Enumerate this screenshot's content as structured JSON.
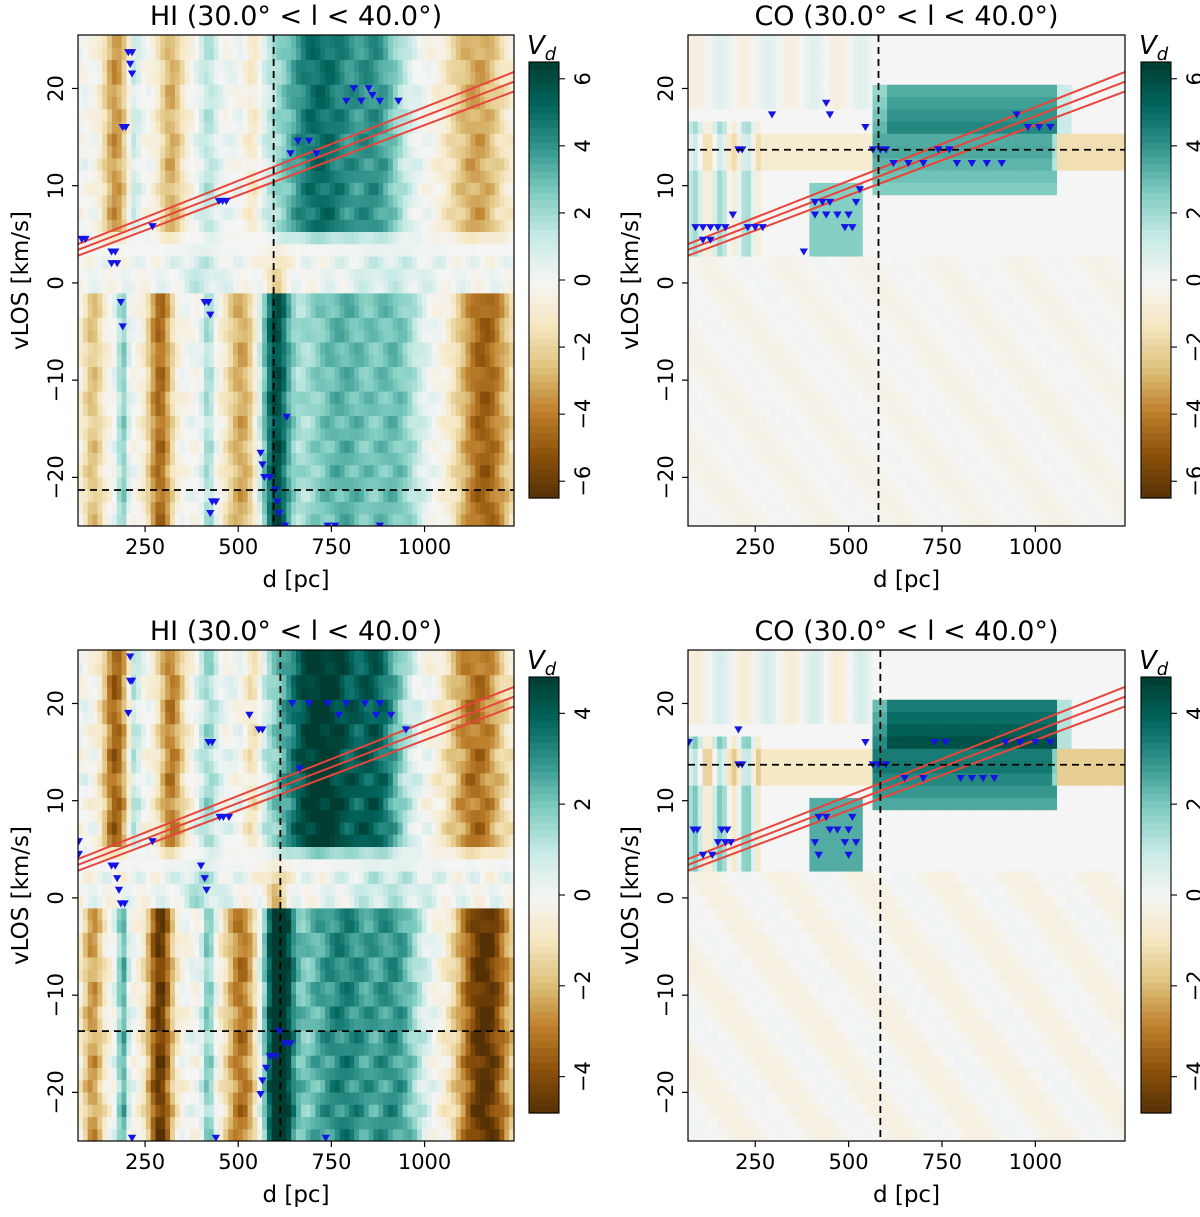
{
  "figure": {
    "colormap": {
      "name": "BrBG",
      "stops": [
        "#543005",
        "#8c510a",
        "#bf812d",
        "#dfc27d",
        "#f6e8c3",
        "#f5f5f5",
        "#c7eae5",
        "#80cdc1",
        "#35978f",
        "#01665e",
        "#003c30"
      ]
    },
    "line_colors": {
      "trend": "#e8453c",
      "marker": "#1414e6",
      "crosshair": "#000000"
    }
  },
  "chart_data": [
    {
      "type": "heatmap",
      "panel": "top-left",
      "title": "HI (30.0° < l < 40.0°)",
      "xlabel": "d [pc]",
      "ylabel": "vLOS [km/s]",
      "xlim": [
        70,
        1240
      ],
      "ylim": [
        -25,
        25.5
      ],
      "x_ticks": [
        250,
        500,
        750,
        1000
      ],
      "x_tick_labels": [
        "250",
        "500",
        "750",
        "1000"
      ],
      "y_ticks": [
        -20,
        -10,
        0,
        10,
        20
      ],
      "y_tick_labels": [
        "−20",
        "−10",
        "0",
        "10",
        "20"
      ],
      "colorbar": {
        "label": "V",
        "label_sub": "d",
        "range": [
          -6.5,
          6.5
        ],
        "ticks": [
          -6,
          -4,
          -2,
          0,
          2,
          4,
          6
        ],
        "tick_labels": [
          "−6",
          "−4",
          "−2",
          "0",
          "2",
          "4",
          "6"
        ]
      },
      "crosshair": {
        "x": 595,
        "y": -21.3
      },
      "trend_lines": [
        {
          "x0": 70,
          "y0": 2.8,
          "x1": 1240,
          "y1": 19.7
        },
        {
          "x0": 70,
          "y0": 3.4,
          "x1": 1240,
          "y1": 20.7
        },
        {
          "x0": 70,
          "y0": 4.0,
          "x1": 1240,
          "y1": 21.7
        }
      ],
      "markers": [
        {
          "x": 80,
          "y": 4.5
        },
        {
          "x": 90,
          "y": 4.5
        },
        {
          "x": 205,
          "y": 23.7
        },
        {
          "x": 215,
          "y": 23.7
        },
        {
          "x": 210,
          "y": 22.5
        },
        {
          "x": 215,
          "y": 21.5
        },
        {
          "x": 190,
          "y": 16.0
        },
        {
          "x": 198,
          "y": 16.0
        },
        {
          "x": 160,
          "y": 3.2
        },
        {
          "x": 170,
          "y": 3.2
        },
        {
          "x": 160,
          "y": 2.0
        },
        {
          "x": 175,
          "y": 2.0
        },
        {
          "x": 185,
          "y": -2.0
        },
        {
          "x": 190,
          "y": -4.5
        },
        {
          "x": 270,
          "y": 5.8
        },
        {
          "x": 448,
          "y": 8.4
        },
        {
          "x": 458,
          "y": 8.4
        },
        {
          "x": 468,
          "y": 8.4
        },
        {
          "x": 410,
          "y": -2.0
        },
        {
          "x": 420,
          "y": -2.0
        },
        {
          "x": 425,
          "y": -3.3
        },
        {
          "x": 560,
          "y": -17.5
        },
        {
          "x": 565,
          "y": -18.7
        },
        {
          "x": 570,
          "y": -20.0
        },
        {
          "x": 585,
          "y": -20.0
        },
        {
          "x": 600,
          "y": -21.3
        },
        {
          "x": 605,
          "y": -22.5
        },
        {
          "x": 610,
          "y": -23.7
        },
        {
          "x": 625,
          "y": -25.0
        },
        {
          "x": 430,
          "y": -22.5
        },
        {
          "x": 440,
          "y": -22.5
        },
        {
          "x": 425,
          "y": -23.7
        },
        {
          "x": 630,
          "y": -13.8
        },
        {
          "x": 740,
          "y": -25.0
        },
        {
          "x": 760,
          "y": -25.0
        },
        {
          "x": 880,
          "y": -25.0
        },
        {
          "x": 640,
          "y": 13.3
        },
        {
          "x": 660,
          "y": 14.6
        },
        {
          "x": 690,
          "y": 14.6
        },
        {
          "x": 710,
          "y": 13.3
        },
        {
          "x": 790,
          "y": 18.7
        },
        {
          "x": 830,
          "y": 18.7
        },
        {
          "x": 880,
          "y": 18.7
        },
        {
          "x": 930,
          "y": 18.7
        },
        {
          "x": 810,
          "y": 20.0
        },
        {
          "x": 850,
          "y": 20.0
        },
        {
          "x": 860,
          "y": 19.3
        }
      ]
    },
    {
      "type": "heatmap",
      "panel": "top-right",
      "title": "CO (30.0° < l < 40.0°)",
      "xlabel": "d [pc]",
      "ylabel": "vLOS [km/s]",
      "xlim": [
        70,
        1240
      ],
      "ylim": [
        -25,
        25.5
      ],
      "x_ticks": [
        250,
        500,
        750,
        1000
      ],
      "x_tick_labels": [
        "250",
        "500",
        "750",
        "1000"
      ],
      "y_ticks": [
        -20,
        -10,
        0,
        10,
        20
      ],
      "y_tick_labels": [
        "−20",
        "−10",
        "0",
        "10",
        "20"
      ],
      "colorbar": {
        "label": "V",
        "label_sub": "d",
        "range": [
          -6.5,
          6.5
        ],
        "ticks": [
          -6,
          -4,
          -2,
          0,
          2,
          4,
          6
        ],
        "tick_labels": [
          "−6",
          "−4",
          "−2",
          "0",
          "2",
          "4",
          "6"
        ]
      },
      "crosshair": {
        "x": 580,
        "y": 13.7
      },
      "trend_lines": [
        {
          "x0": 70,
          "y0": 2.8,
          "x1": 1240,
          "y1": 19.7
        },
        {
          "x0": 70,
          "y0": 3.4,
          "x1": 1240,
          "y1": 20.7
        },
        {
          "x0": 70,
          "y0": 4.0,
          "x1": 1240,
          "y1": 21.7
        }
      ],
      "markers": [
        {
          "x": 90,
          "y": 5.7
        },
        {
          "x": 110,
          "y": 5.7
        },
        {
          "x": 130,
          "y": 5.7
        },
        {
          "x": 150,
          "y": 5.7
        },
        {
          "x": 170,
          "y": 5.7
        },
        {
          "x": 110,
          "y": 4.4
        },
        {
          "x": 130,
          "y": 4.4
        },
        {
          "x": 190,
          "y": 7.0
        },
        {
          "x": 205,
          "y": 13.7
        },
        {
          "x": 215,
          "y": 13.7
        },
        {
          "x": 230,
          "y": 5.7
        },
        {
          "x": 250,
          "y": 5.7
        },
        {
          "x": 270,
          "y": 5.7
        },
        {
          "x": 295,
          "y": 17.3
        },
        {
          "x": 380,
          "y": 3.2
        },
        {
          "x": 410,
          "y": 8.3
        },
        {
          "x": 430,
          "y": 8.3
        },
        {
          "x": 450,
          "y": 8.3
        },
        {
          "x": 410,
          "y": 7.0
        },
        {
          "x": 440,
          "y": 7.0
        },
        {
          "x": 470,
          "y": 7.0
        },
        {
          "x": 500,
          "y": 7.0
        },
        {
          "x": 440,
          "y": 18.5
        },
        {
          "x": 450,
          "y": 17.3
        },
        {
          "x": 520,
          "y": 8.3
        },
        {
          "x": 530,
          "y": 9.6
        },
        {
          "x": 490,
          "y": 5.7
        },
        {
          "x": 510,
          "y": 5.7
        },
        {
          "x": 545,
          "y": 16.0
        },
        {
          "x": 565,
          "y": 13.7
        },
        {
          "x": 585,
          "y": 13.7
        },
        {
          "x": 600,
          "y": 13.7
        },
        {
          "x": 620,
          "y": 12.3
        },
        {
          "x": 660,
          "y": 12.3
        },
        {
          "x": 700,
          "y": 12.3
        },
        {
          "x": 740,
          "y": 13.7
        },
        {
          "x": 770,
          "y": 13.7
        },
        {
          "x": 790,
          "y": 12.3
        },
        {
          "x": 830,
          "y": 12.3
        },
        {
          "x": 870,
          "y": 12.3
        },
        {
          "x": 910,
          "y": 12.3
        },
        {
          "x": 950,
          "y": 17.3
        },
        {
          "x": 980,
          "y": 16.0
        },
        {
          "x": 1010,
          "y": 16.0
        },
        {
          "x": 1040,
          "y": 16.0
        }
      ]
    },
    {
      "type": "heatmap",
      "panel": "bottom-left",
      "title": "HI (30.0° < l < 40.0°)",
      "xlabel": "d [pc]",
      "ylabel": "vLOS [km/s]",
      "xlim": [
        70,
        1240
      ],
      "ylim": [
        -25,
        25.5
      ],
      "x_ticks": [
        250,
        500,
        750,
        1000
      ],
      "x_tick_labels": [
        "250",
        "500",
        "750",
        "1000"
      ],
      "y_ticks": [
        -20,
        -10,
        0,
        10,
        20
      ],
      "y_tick_labels": [
        "−20",
        "−10",
        "0",
        "10",
        "20"
      ],
      "colorbar": {
        "label": "V",
        "label_sub": "d",
        "range": [
          -4.8,
          4.8
        ],
        "ticks": [
          -4,
          -2,
          0,
          2,
          4
        ],
        "tick_labels": [
          "−4",
          "−2",
          "0",
          "2",
          "4"
        ]
      },
      "crosshair": {
        "x": 613,
        "y": -13.7
      },
      "trend_lines": [
        {
          "x0": 70,
          "y0": 2.8,
          "x1": 1240,
          "y1": 19.7
        },
        {
          "x0": 70,
          "y0": 3.4,
          "x1": 1240,
          "y1": 20.7
        },
        {
          "x0": 70,
          "y0": 4.0,
          "x1": 1240,
          "y1": 21.7
        }
      ],
      "markers": [
        {
          "x": 72,
          "y": 5.8
        },
        {
          "x": 72,
          "y": 4.5
        },
        {
          "x": 210,
          "y": 24.8
        },
        {
          "x": 210,
          "y": 22.3
        },
        {
          "x": 215,
          "y": 22.3
        },
        {
          "x": 205,
          "y": 19.0
        },
        {
          "x": 160,
          "y": 3.3
        },
        {
          "x": 170,
          "y": 3.3
        },
        {
          "x": 175,
          "y": 2.0
        },
        {
          "x": 180,
          "y": 0.8
        },
        {
          "x": 185,
          "y": -0.6
        },
        {
          "x": 195,
          "y": -0.6
        },
        {
          "x": 270,
          "y": 5.8
        },
        {
          "x": 215,
          "y": -24.7
        },
        {
          "x": 420,
          "y": 16.0
        },
        {
          "x": 430,
          "y": 16.0
        },
        {
          "x": 450,
          "y": 8.3
        },
        {
          "x": 460,
          "y": 8.3
        },
        {
          "x": 475,
          "y": 8.3
        },
        {
          "x": 400,
          "y": 3.3
        },
        {
          "x": 410,
          "y": 2.0
        },
        {
          "x": 415,
          "y": 0.8
        },
        {
          "x": 440,
          "y": -24.7
        },
        {
          "x": 555,
          "y": 17.3
        },
        {
          "x": 565,
          "y": 17.3
        },
        {
          "x": 530,
          "y": 18.8
        },
        {
          "x": 610,
          "y": -13.7
        },
        {
          "x": 625,
          "y": -15.0
        },
        {
          "x": 640,
          "y": -15.0
        },
        {
          "x": 600,
          "y": -16.3
        },
        {
          "x": 585,
          "y": -16.3
        },
        {
          "x": 575,
          "y": -17.5
        },
        {
          "x": 565,
          "y": -18.8
        },
        {
          "x": 560,
          "y": -20.2
        },
        {
          "x": 735,
          "y": -24.7
        },
        {
          "x": 645,
          "y": 20.0
        },
        {
          "x": 690,
          "y": 20.0
        },
        {
          "x": 740,
          "y": 20.0
        },
        {
          "x": 790,
          "y": 20.0
        },
        {
          "x": 840,
          "y": 20.0
        },
        {
          "x": 880,
          "y": 20.0
        },
        {
          "x": 770,
          "y": 18.8
        },
        {
          "x": 870,
          "y": 18.8
        },
        {
          "x": 910,
          "y": 18.8
        },
        {
          "x": 950,
          "y": 17.3
        },
        {
          "x": 665,
          "y": 13.3
        }
      ]
    },
    {
      "type": "heatmap",
      "panel": "bottom-right",
      "title": "CO (30.0° < l < 40.0°)",
      "xlabel": "d [pc]",
      "ylabel": "vLOS [km/s]",
      "xlim": [
        70,
        1240
      ],
      "ylim": [
        -25,
        25.5
      ],
      "x_ticks": [
        250,
        500,
        750,
        1000
      ],
      "x_tick_labels": [
        "250",
        "500",
        "750",
        "1000"
      ],
      "y_ticks": [
        -20,
        -10,
        0,
        10,
        20
      ],
      "y_tick_labels": [
        "−20",
        "−10",
        "0",
        "10",
        "20"
      ],
      "colorbar": {
        "label": "V",
        "label_sub": "d",
        "range": [
          -4.8,
          4.8
        ],
        "ticks": [
          -4,
          -2,
          0,
          2,
          4
        ],
        "tick_labels": [
          "−4",
          "−2",
          "0",
          "2",
          "4"
        ]
      },
      "crosshair": {
        "x": 585,
        "y": 13.7
      },
      "trend_lines": [
        {
          "x0": 70,
          "y0": 2.8,
          "x1": 1240,
          "y1": 19.7
        },
        {
          "x0": 70,
          "y0": 3.4,
          "x1": 1240,
          "y1": 20.7
        },
        {
          "x0": 70,
          "y0": 4.0,
          "x1": 1240,
          "y1": 21.7
        }
      ],
      "markers": [
        {
          "x": 72,
          "y": 16.0
        },
        {
          "x": 85,
          "y": 7.0
        },
        {
          "x": 95,
          "y": 7.0
        },
        {
          "x": 110,
          "y": 4.4
        },
        {
          "x": 135,
          "y": 4.4
        },
        {
          "x": 150,
          "y": 5.7
        },
        {
          "x": 170,
          "y": 5.7
        },
        {
          "x": 185,
          "y": 5.7
        },
        {
          "x": 160,
          "y": 7.0
        },
        {
          "x": 175,
          "y": 7.0
        },
        {
          "x": 205,
          "y": 17.3
        },
        {
          "x": 205,
          "y": 13.7
        },
        {
          "x": 215,
          "y": 13.7
        },
        {
          "x": 420,
          "y": 8.3
        },
        {
          "x": 440,
          "y": 8.3
        },
        {
          "x": 410,
          "y": 5.7
        },
        {
          "x": 420,
          "y": 4.4
        },
        {
          "x": 450,
          "y": 7.0
        },
        {
          "x": 470,
          "y": 7.0
        },
        {
          "x": 500,
          "y": 7.0
        },
        {
          "x": 510,
          "y": 8.3
        },
        {
          "x": 490,
          "y": 5.7
        },
        {
          "x": 500,
          "y": 4.4
        },
        {
          "x": 520,
          "y": 5.7
        },
        {
          "x": 545,
          "y": 16.0
        },
        {
          "x": 565,
          "y": 13.7
        },
        {
          "x": 580,
          "y": 13.7
        },
        {
          "x": 600,
          "y": 13.7
        },
        {
          "x": 650,
          "y": 12.3
        },
        {
          "x": 700,
          "y": 12.3
        },
        {
          "x": 730,
          "y": 16.0
        },
        {
          "x": 760,
          "y": 16.0
        },
        {
          "x": 800,
          "y": 12.3
        },
        {
          "x": 830,
          "y": 12.3
        },
        {
          "x": 860,
          "y": 12.3
        },
        {
          "x": 890,
          "y": 12.3
        },
        {
          "x": 920,
          "y": 16.0
        },
        {
          "x": 960,
          "y": 16.0
        },
        {
          "x": 1000,
          "y": 16.0
        },
        {
          "x": 1040,
          "y": 16.0
        }
      ]
    }
  ]
}
